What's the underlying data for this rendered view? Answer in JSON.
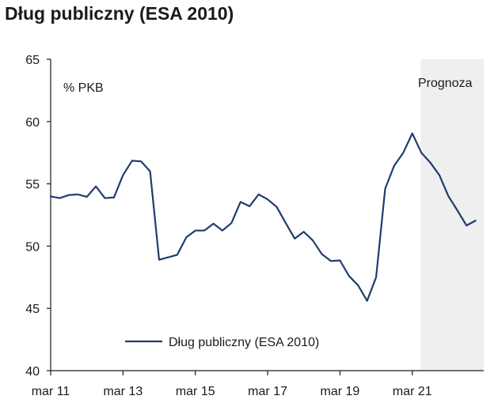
{
  "chart_data": {
    "type": "line",
    "title": "Dług publiczny (ESA 2010)",
    "unit_label": "% PKB",
    "forecast_label": "Prognoza",
    "ylim": [
      40,
      65
    ],
    "yticks": [
      40,
      45,
      50,
      55,
      60,
      65
    ],
    "xticks": [
      {
        "label": "mar 11",
        "index": 0
      },
      {
        "label": "mar 13",
        "index": 8
      },
      {
        "label": "mar 15",
        "index": 16
      },
      {
        "label": "mar 17",
        "index": 24
      },
      {
        "label": "mar 19",
        "index": 32
      },
      {
        "label": "mar 21",
        "index": 40
      }
    ],
    "x_count": 48,
    "forecast_start_index": 41,
    "series": [
      {
        "name": "Dług publiczny (ESA 2010)",
        "color": "#1f3d6e",
        "values": [
          54.0,
          53.85,
          54.1,
          54.15,
          53.95,
          54.8,
          53.85,
          53.9,
          55.7,
          56.85,
          56.8,
          56.0,
          48.9,
          49.1,
          49.3,
          50.7,
          51.25,
          51.25,
          51.8,
          51.25,
          51.85,
          53.55,
          53.2,
          54.15,
          53.75,
          53.15,
          51.85,
          50.6,
          51.15,
          50.45,
          49.35,
          48.8,
          48.85,
          47.6,
          46.85,
          45.6,
          47.5,
          54.6,
          56.45,
          57.5,
          59.05,
          57.5,
          56.7,
          55.7,
          54.0,
          52.85,
          51.65,
          52.05
        ]
      }
    ],
    "legend": {
      "position": "bottom-center",
      "entries": [
        "Dług publiczny (ESA 2010)"
      ]
    },
    "colors": {
      "line": "#1f3d6e",
      "forecast_shade": "#efefef",
      "axis": "#1a1a1a"
    }
  }
}
